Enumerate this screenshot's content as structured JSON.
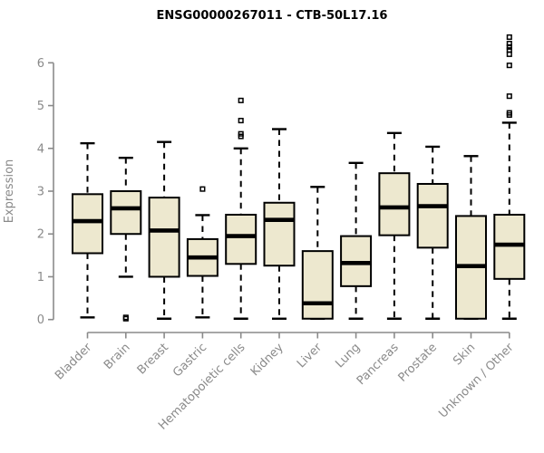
{
  "chart_data": {
    "type": "boxplot",
    "title": "ENSG00000267011 - CTB-50L17.16",
    "xlabel": "",
    "ylabel": "Expression",
    "ylim": [
      0,
      6.6
    ],
    "yticks": [
      0,
      1,
      2,
      3,
      4,
      5,
      6
    ],
    "grid": "off",
    "categories": [
      "Bladder",
      "Brain",
      "Breast",
      "Gastric",
      "Hematopoietic cells",
      "Kidney",
      "Liver",
      "Lung",
      "Pancreas",
      "Prostate",
      "Skin",
      "Unknown / Other"
    ],
    "boxes": [
      {
        "category": "Bladder",
        "whisker_low": 0.05,
        "q1": 1.55,
        "median": 2.3,
        "q3": 2.93,
        "whisker_high": 4.12,
        "outliers": []
      },
      {
        "category": "Brain",
        "whisker_low": 1.0,
        "q1": 2.0,
        "median": 2.6,
        "q3": 3.0,
        "whisker_high": 3.78,
        "outliers": [
          0.02,
          0.05
        ]
      },
      {
        "category": "Breast",
        "whisker_low": 0.02,
        "q1": 1.0,
        "median": 2.08,
        "q3": 2.85,
        "whisker_high": 4.15,
        "outliers": []
      },
      {
        "category": "Gastric",
        "whisker_low": 0.05,
        "q1": 1.02,
        "median": 1.45,
        "q3": 1.88,
        "whisker_high": 2.44,
        "outliers": [
          3.05
        ]
      },
      {
        "category": "Hematopoietic cells",
        "whisker_low": 0.02,
        "q1": 1.3,
        "median": 1.95,
        "q3": 2.45,
        "whisker_high": 4.0,
        "outliers": [
          4.28,
          4.34,
          4.65,
          5.12
        ]
      },
      {
        "category": "Kidney",
        "whisker_low": 0.02,
        "q1": 1.26,
        "median": 2.33,
        "q3": 2.73,
        "whisker_high": 4.45,
        "outliers": []
      },
      {
        "category": "Liver",
        "whisker_low": 0.02,
        "q1": 0.02,
        "median": 0.38,
        "q3": 1.6,
        "whisker_high": 3.1,
        "outliers": []
      },
      {
        "category": "Lung",
        "whisker_low": 0.02,
        "q1": 0.78,
        "median": 1.32,
        "q3": 1.95,
        "whisker_high": 3.66,
        "outliers": []
      },
      {
        "category": "Pancreas",
        "whisker_low": 0.02,
        "q1": 1.97,
        "median": 2.62,
        "q3": 3.42,
        "whisker_high": 4.36,
        "outliers": []
      },
      {
        "category": "Prostate",
        "whisker_low": 0.02,
        "q1": 1.68,
        "median": 2.65,
        "q3": 3.17,
        "whisker_high": 4.04,
        "outliers": []
      },
      {
        "category": "Skin",
        "whisker_low": 0.02,
        "q1": 0.02,
        "median": 1.25,
        "q3": 2.42,
        "whisker_high": 3.82,
        "outliers": []
      },
      {
        "category": "Unknown / Other",
        "whisker_low": 0.02,
        "q1": 0.95,
        "median": 1.75,
        "q3": 2.45,
        "whisker_high": 4.6,
        "outliers": [
          4.78,
          4.83,
          5.22,
          5.94,
          6.2,
          6.3,
          6.37,
          6.45,
          6.6
        ]
      }
    ],
    "colors": {
      "box_fill": "#EDE8CF",
      "box_border": "#000000",
      "median": "#000000",
      "whisker": "#000000",
      "axis": "#8a8a8a",
      "tick_label": "#8a8a8a",
      "title": "#000000",
      "background": "#ffffff"
    },
    "legend": "none"
  }
}
